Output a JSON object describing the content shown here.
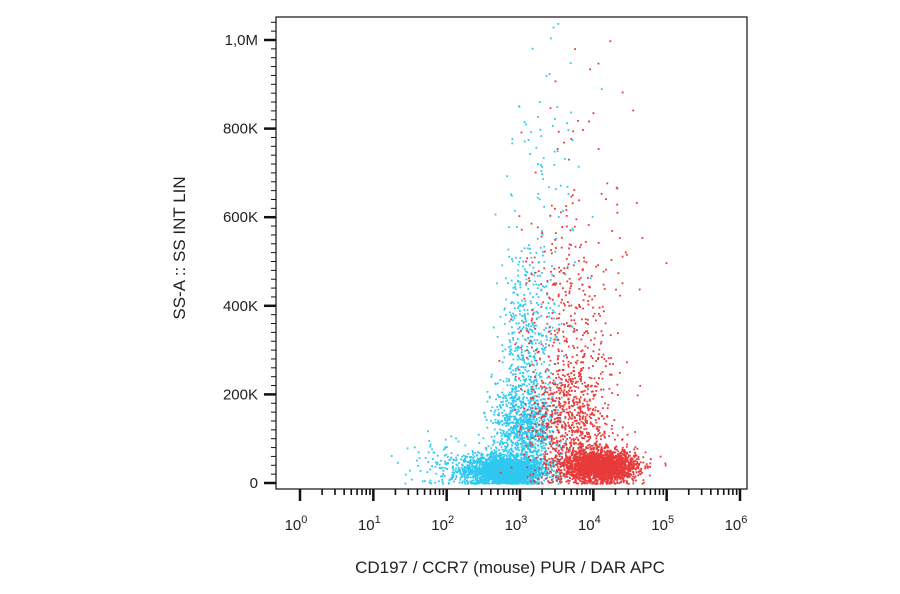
{
  "chart_data": {
    "type": "scatter",
    "title": "",
    "xlabel": "CD197 / CCR7 (mouse) PUR / DAR APC",
    "ylabel": "SS-A :: SS INT LIN",
    "x_scale": "log",
    "xlim": [
      1,
      1000000
    ],
    "ylim": [
      0,
      1050000
    ],
    "x_ticks": [
      {
        "value": 1,
        "base": "10",
        "exp": "0"
      },
      {
        "value": 10,
        "base": "10",
        "exp": "1"
      },
      {
        "value": 100,
        "base": "10",
        "exp": "2"
      },
      {
        "value": 1000,
        "base": "10",
        "exp": "3"
      },
      {
        "value": 10000,
        "base": "10",
        "exp": "4"
      },
      {
        "value": 100000,
        "base": "10",
        "exp": "5"
      },
      {
        "value": 1000000,
        "base": "10",
        "exp": "6"
      }
    ],
    "y_ticks": [
      {
        "value": 0,
        "label": "0"
      },
      {
        "value": 200000,
        "label": "200K"
      },
      {
        "value": 400000,
        "label": "400K"
      },
      {
        "value": 600000,
        "label": "600K"
      },
      {
        "value": 800000,
        "label": "800K"
      },
      {
        "value": 1000000,
        "label": "1,0M"
      }
    ],
    "grid": false,
    "series": [
      {
        "color": "#2ec8f0",
        "clusters": [
          {
            "count": 2600,
            "x_center": 600,
            "x_log_sd": 0.27,
            "y_center": 30000,
            "y_sd": 16000
          },
          {
            "count": 1000,
            "x_center": 1100,
            "x_log_sd": 0.22,
            "y_center": 120000,
            "y_sd": 55000
          },
          {
            "count": 450,
            "x_center": 1300,
            "x_log_sd": 0.2,
            "y_center": 320000,
            "y_sd": 110000
          },
          {
            "count": 90,
            "x_center": 1800,
            "x_log_sd": 0.35,
            "y_center": 650000,
            "y_sd": 180000
          },
          {
            "count": 140,
            "x_center": 120,
            "x_log_sd": 0.35,
            "y_center": 40000,
            "y_sd": 30000
          }
        ]
      },
      {
        "color": "#e83a3a",
        "clusters": [
          {
            "count": 2300,
            "x_center": 12000,
            "x_log_sd": 0.25,
            "y_center": 40000,
            "y_sd": 18000
          },
          {
            "count": 700,
            "x_center": 4500,
            "x_log_sd": 0.28,
            "y_center": 130000,
            "y_sd": 70000
          },
          {
            "count": 350,
            "x_center": 4000,
            "x_log_sd": 0.3,
            "y_center": 330000,
            "y_sd": 130000
          },
          {
            "count": 100,
            "x_center": 9000,
            "x_log_sd": 0.4,
            "y_center": 550000,
            "y_sd": 200000
          }
        ]
      }
    ]
  }
}
